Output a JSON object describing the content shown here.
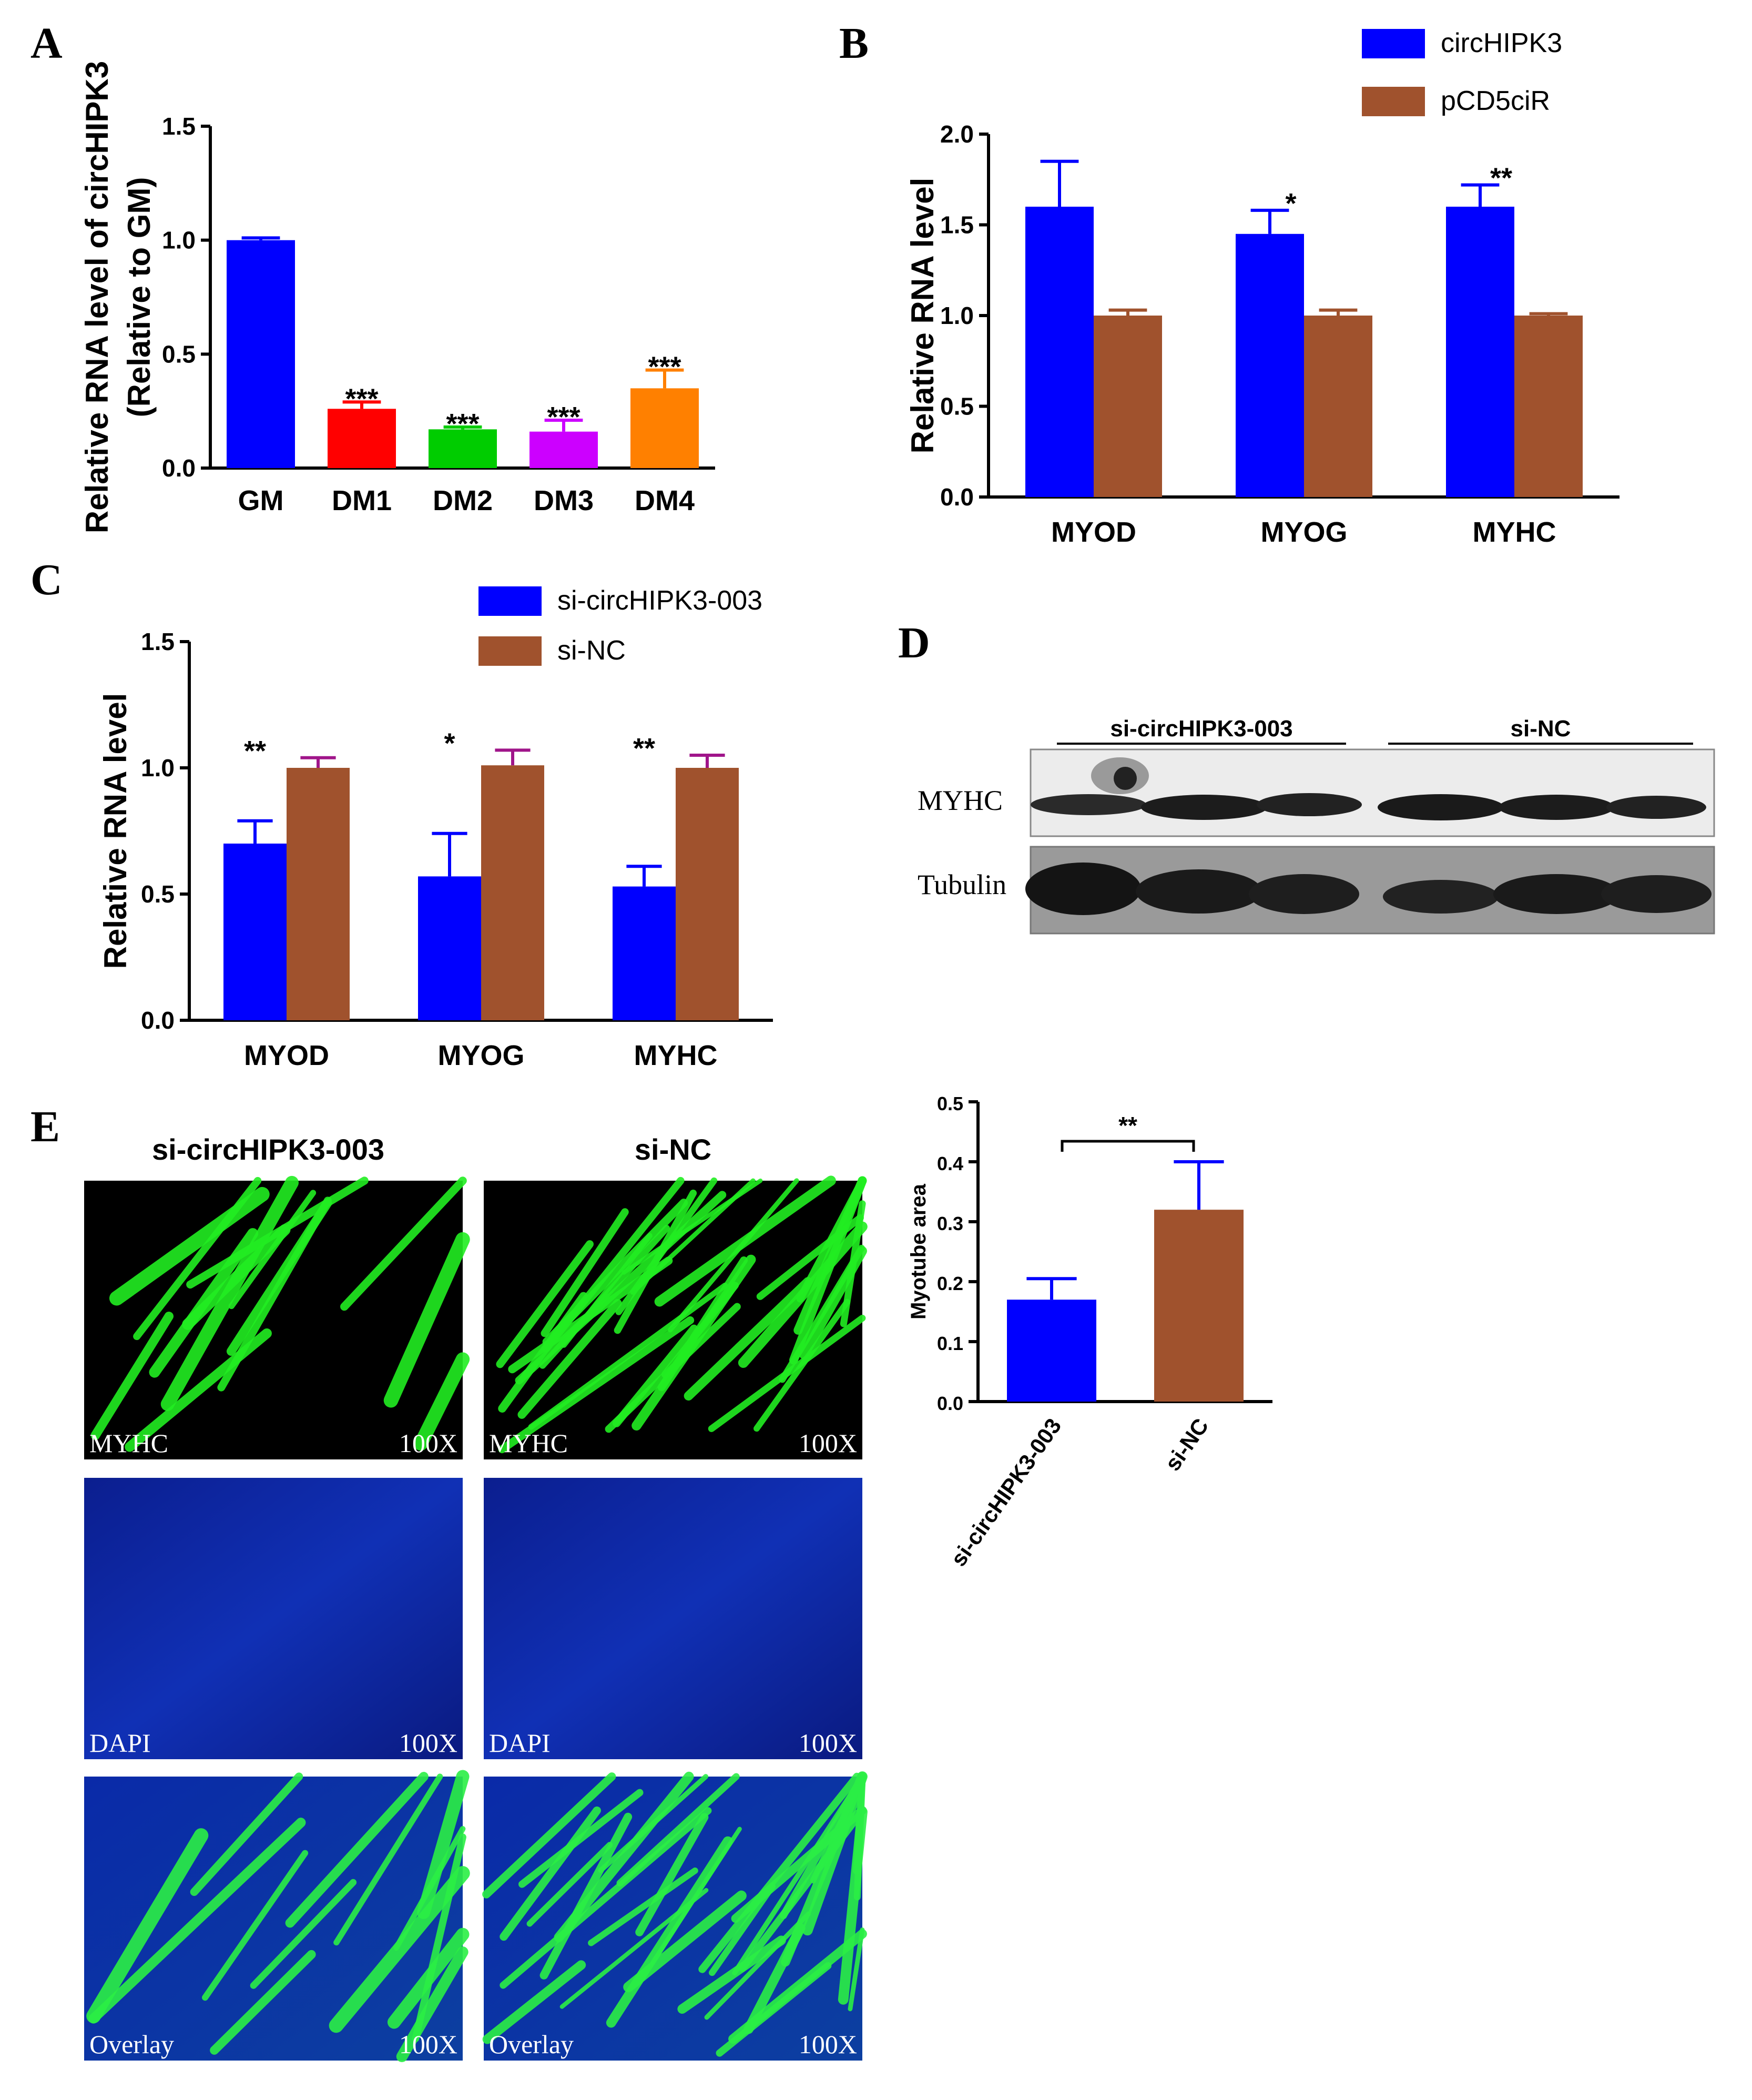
{
  "panels": {
    "A": "A",
    "B": "B",
    "C": "C",
    "D": "D",
    "E": "E"
  },
  "chart_data": [
    {
      "id": "A",
      "type": "bar",
      "ylabel": "Relative RNA level of circHIPK3 (Relative to GM)",
      "ylabel_lines": [
        "Relative RNA level of circHIPK3",
        "(Relative to GM)"
      ],
      "ylim": [
        0,
        1.5
      ],
      "yticks": [
        "0.0",
        "0.5",
        "1.0",
        "1.5"
      ],
      "categories": [
        "GM",
        "DM1",
        "DM2",
        "DM3",
        "DM4"
      ],
      "values": [
        1.0,
        0.26,
        0.17,
        0.16,
        0.35
      ],
      "errors": [
        0.01,
        0.03,
        0.01,
        0.05,
        0.08
      ],
      "colors": [
        "#0000ff",
        "#ff0000",
        "#00cc00",
        "#cc00ff",
        "#ff8000"
      ],
      "significance": [
        "",
        "***",
        "***",
        "***",
        "***"
      ]
    },
    {
      "id": "B",
      "type": "bar",
      "ylabel": "Relative RNA level",
      "ylim": [
        0,
        2.0
      ],
      "yticks": [
        "0.0",
        "0.5",
        "1.0",
        "1.5",
        "2.0"
      ],
      "categories": [
        "MYOD",
        "MYOG",
        "MYHC"
      ],
      "series": [
        {
          "name": "circHIPK3",
          "color": "#0000ff",
          "values": [
            1.6,
            1.45,
            1.6
          ],
          "errors": [
            0.25,
            0.13,
            0.12
          ]
        },
        {
          "name": "pCD5ciR",
          "color": "#a0522d",
          "values": [
            1.0,
            1.0,
            1.0
          ],
          "errors": [
            0.03,
            0.03,
            0.01
          ]
        }
      ],
      "significance": [
        "",
        "*",
        "**"
      ],
      "legend": "top-right"
    },
    {
      "id": "C",
      "type": "bar",
      "ylabel": "Relative RNA level",
      "ylim": [
        0,
        1.5
      ],
      "yticks": [
        "0.0",
        "0.5",
        "1.0",
        "1.5"
      ],
      "categories": [
        "MYOD",
        "MYOG",
        "MYHC"
      ],
      "series": [
        {
          "name": "si-circHIPK3-003",
          "color": "#0000ff",
          "values": [
            0.7,
            0.57,
            0.53
          ],
          "errors": [
            0.09,
            0.17,
            0.08
          ]
        },
        {
          "name": "si-NC",
          "color": "#a0522d",
          "values": [
            1.0,
            1.01,
            1.0
          ],
          "errors": [
            0.04,
            0.06,
            0.05
          ]
        }
      ],
      "significance": [
        "**",
        "*",
        "**"
      ],
      "legend": "top-right"
    },
    {
      "id": "E",
      "type": "bar",
      "ylabel": "Myotube area",
      "ylim": [
        0,
        0.5
      ],
      "yticks": [
        "0.0",
        "0.1",
        "0.2",
        "0.3",
        "0.4",
        "0.5"
      ],
      "categories": [
        "si-circHIPK3-003",
        "si-NC"
      ],
      "values": [
        0.17,
        0.32
      ],
      "errors": [
        0.035,
        0.08
      ],
      "colors": [
        "#0000ff",
        "#a0522d"
      ],
      "significance": "**"
    }
  ],
  "western_blot": {
    "groups": [
      "si-circHIPK3-003",
      "si-NC"
    ],
    "rows": [
      "MYHC",
      "Tubulin"
    ]
  },
  "microscopy": {
    "columns": [
      "si-circHIPK3-003",
      "si-NC"
    ],
    "rows": [
      "MYHC",
      "DAPI",
      "Overlay"
    ],
    "magnification": "100X"
  }
}
